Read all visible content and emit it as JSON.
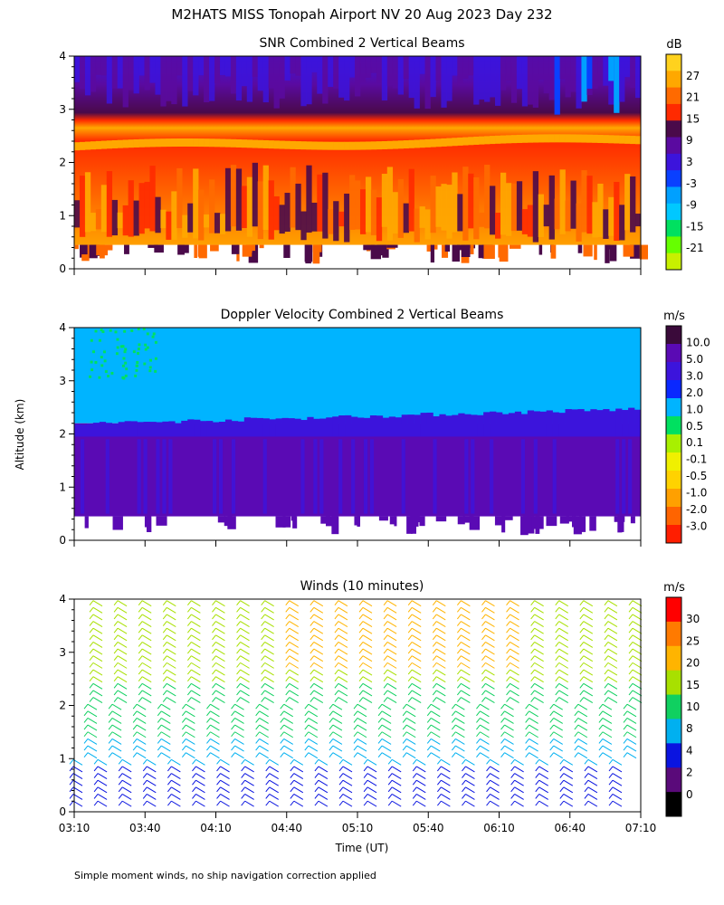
{
  "title": "M2HATS MISS Tonopah Airport NV  20 Aug 2023 Day 232",
  "y_axis_label": "Altitude (km)",
  "x_axis_label": "Time (UT)",
  "footnote": "Simple moment winds, no ship navigation correction applied",
  "chart_data": [
    {
      "type": "heatmap",
      "title": "SNR Combined 2 Vertical Beams",
      "ylabel": "Altitude (km)",
      "ylim": [
        0,
        4
      ],
      "yticks": [
        "0",
        "1",
        "2",
        "3",
        "4"
      ],
      "xlim": [
        "03:10",
        "07:10"
      ],
      "colorbar_unit": "dB",
      "colorbar_ticks": [
        "27",
        "21",
        "15",
        "9",
        "3",
        "-3",
        "-9",
        "-15",
        "-21"
      ],
      "colors": [
        "#ffd21e",
        "#ffa800",
        "#ff6a00",
        "#ff2a00",
        "#4a0a4a",
        "#5a0aa0",
        "#3c14dc",
        "#0a40ff",
        "#00a0ff",
        "#00c8ff",
        "#00e060",
        "#66ff00",
        "#c8f000"
      ]
    },
    {
      "type": "heatmap",
      "title": "Doppler Velocity Combined 2 Vertical Beams",
      "ylabel": "Altitude (km)",
      "ylim": [
        0,
        4
      ],
      "yticks": [
        "0",
        "1",
        "2",
        "3",
        "4"
      ],
      "xlim": [
        "03:10",
        "07:10"
      ],
      "colorbar_unit": "m/s",
      "colorbar_ticks": [
        "10.0",
        "5.0",
        "3.0",
        "2.0",
        "1.0",
        "0.5",
        "0.1",
        "-0.1",
        "-0.5",
        "-1.0",
        "-2.0",
        "-3.0"
      ],
      "colors": [
        "#3a0a3a",
        "#5a0ab4",
        "#3c14dc",
        "#0a28ff",
        "#00b4ff",
        "#00e060",
        "#a8f000",
        "#f0f000",
        "#ffd200",
        "#ffa000",
        "#ff6400",
        "#ff1e00"
      ]
    },
    {
      "type": "wind_barbs",
      "title": "Winds (10 minutes)",
      "ylabel": "Altitude (km)",
      "ylim": [
        0,
        4
      ],
      "yticks": [
        "0",
        "1",
        "2",
        "3",
        "4"
      ],
      "xlabel": "Time (UT)",
      "xticks": [
        "03:10",
        "03:40",
        "04:10",
        "04:40",
        "05:10",
        "05:40",
        "06:10",
        "06:40",
        "07:10"
      ],
      "colorbar_unit": "m/s",
      "colorbar_ticks": [
        "30",
        "25",
        "20",
        "15",
        "10",
        "8",
        "4",
        "2",
        "0"
      ],
      "colors": [
        "#ff0000",
        "#ff7a00",
        "#ffb400",
        "#a8e000",
        "#10d060",
        "#00b0f0",
        "#0a14e0",
        "#5a0a7a",
        "#000000"
      ]
    }
  ]
}
